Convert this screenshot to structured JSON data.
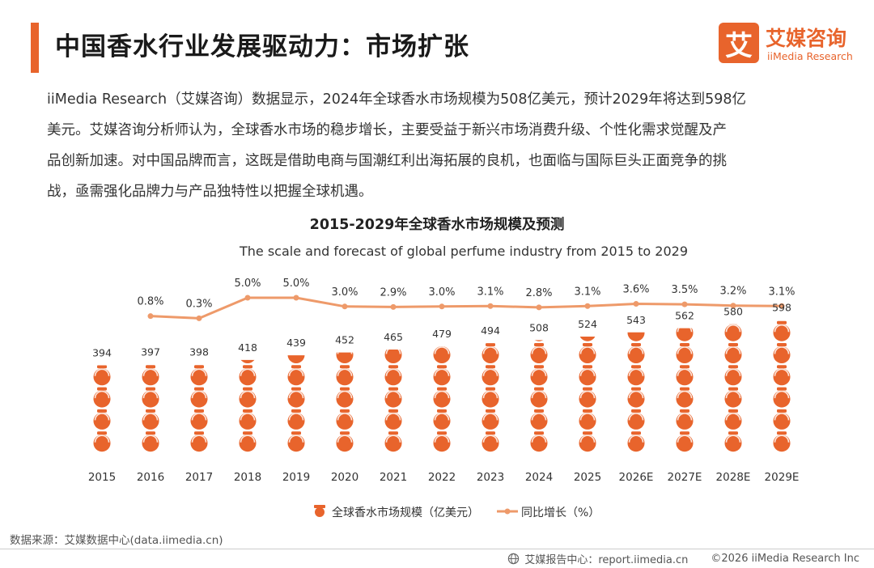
{
  "header": {
    "title": "中国香水行业发展驱动力：市场扩张",
    "accent_color": "#E8642C"
  },
  "logo": {
    "mark": "艾",
    "name_cn": "艾媒咨询",
    "name_en": "iiMedia Research"
  },
  "intro": {
    "lines": [
      "iiMedia Research（艾媒咨询）数据显示，2024年全球香水市场规模为508亿美元，预计2029年将达到598亿",
      "美元。艾媒咨询分析师认为，全球香水市场的稳步增长，主要受益于新兴市场消费升级、个性化需求觉醒及产",
      "品创新加速。对中国品牌而言，这既是借助电商与国潮红利出海拓展的良机，也面临与国际巨头正面竞争的挑",
      "战，亟需强化品牌力与产品独特性以把握全球机遇。"
    ]
  },
  "chart_data": {
    "type": "bar",
    "title": "2015-2029年全球香水市场规模及预测",
    "subtitle": "The scale and forecast of global perfume industry from 2015 to 2029",
    "categories": [
      "2015",
      "2016",
      "2017",
      "2018",
      "2019",
      "2020",
      "2021",
      "2022",
      "2023",
      "2024",
      "2025",
      "2026E",
      "2027E",
      "2028E",
      "2029E"
    ],
    "series": [
      {
        "name": "全球香水市场规模（亿美元）",
        "type": "bar",
        "color": "#E8642C",
        "values": [
          394,
          397,
          398,
          418,
          439,
          452,
          465,
          479,
          494,
          508,
          524,
          543,
          562,
          580,
          598
        ]
      },
      {
        "name": "同比增长（%）",
        "type": "line",
        "color": "#EE9A6A",
        "values": [
          null,
          0.8,
          0.3,
          5.0,
          5.0,
          3.0,
          2.9,
          3.0,
          3.1,
          2.8,
          3.1,
          3.6,
          3.5,
          3.2,
          3.1
        ],
        "labels": [
          "",
          "0.8%",
          "0.3%",
          "5.0%",
          "5.0%",
          "3.0%",
          "2.9%",
          "3.0%",
          "3.1%",
          "2.8%",
          "3.1%",
          "3.6%",
          "3.5%",
          "3.2%",
          "3.1%"
        ]
      }
    ],
    "legend_position": "bottom",
    "grid": false
  },
  "footer": {
    "source": "数据来源：艾媒数据中心(data.iimedia.cn)",
    "report_center": "艾媒报告中心：report.iimedia.cn",
    "copyright": "©2026  iiMedia Research  Inc"
  }
}
